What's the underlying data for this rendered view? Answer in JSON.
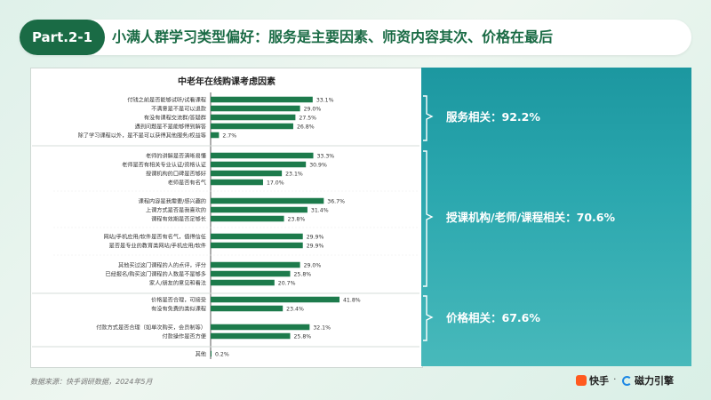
{
  "header": {
    "badge": "Part.2-1",
    "title": "小满人群学习类型偏好：服务是主要因素、师资内容其次、价格在最后"
  },
  "footnote": "数据来源：快手调研数据，2024年5月",
  "logos": {
    "kuaishou": "快手",
    "cili": "磁力引擎",
    "separator": "·"
  },
  "colors": {
    "bar": "#1d7b4c",
    "brand": "#1a6b45",
    "panel": "#1c97a0"
  },
  "chart_data": {
    "type": "bar",
    "orientation": "horizontal",
    "title": "中老年在线购课考虑因素",
    "xlim": [
      0,
      45
    ],
    "groups": [
      {
        "summary": "服务相关：92.2%",
        "items": [
          {
            "label": "付钱之前是否能够试听/试看课程",
            "value": 33.1,
            "value_label": "33.1%"
          },
          {
            "label": "不满意是不是可以退款",
            "value": 29.0,
            "value_label": "29.0%"
          },
          {
            "label": "有没有课程交流群/答疑群",
            "value": 27.5,
            "value_label": "27.5%"
          },
          {
            "label": "遇到问题是不是能够得到解答",
            "value": 26.8,
            "value_label": "26.8%"
          },
          {
            "label": "除了学习课程以外，是不是可以获得其他服务/权益等",
            "value": 2.7,
            "value_label": "2.7%"
          }
        ]
      },
      {
        "summary": "授课机构/老师/课程相关：70.6%",
        "items": [
          {
            "label": "老师的讲解是否清晰易懂",
            "value": 33.3,
            "value_label": "33.3%"
          },
          {
            "label": "老师是否有相关专业认证/资格认证",
            "value": 30.9,
            "value_label": "30.9%"
          },
          {
            "label": "授课机构的口碑是否够好",
            "value": 23.1,
            "value_label": "23.1%"
          },
          {
            "label": "老师是否有名气",
            "value": 17.0,
            "value_label": "17.0%"
          },
          {
            "label": "课程内容是我需要/感兴趣的",
            "value": 36.7,
            "value_label": "36.7%"
          },
          {
            "label": "上课方式是否是我喜欢的",
            "value": 31.4,
            "value_label": "31.4%"
          },
          {
            "label": "课程有效期是否足够长",
            "value": 23.8,
            "value_label": "23.8%"
          },
          {
            "label": "网站/手机应用/软件是否有名气，值得信任",
            "value": 29.9,
            "value_label": "29.9%"
          },
          {
            "label": "是否是专业的教育类网站/手机应用/软件",
            "value": 29.9,
            "value_label": "29.9%"
          },
          {
            "label": "其他买过这门课程的人的点评，评分",
            "value": 29.0,
            "value_label": "29.0%"
          },
          {
            "label": "已经报名/购买这门课程的人数是不是够多",
            "value": 25.8,
            "value_label": "25.8%"
          },
          {
            "label": "家人/朋友的意见和看法",
            "value": 20.7,
            "value_label": "20.7%"
          }
        ]
      },
      {
        "summary": "价格相关：67.6%",
        "items": [
          {
            "label": "价格是否合理，可接受",
            "value": 41.8,
            "value_label": "41.8%"
          },
          {
            "label": "有没有免费的类似课程",
            "value": 23.4,
            "value_label": "23.4%"
          },
          {
            "label": "付款方式是否合理（如单次购买，会员制等）",
            "value": 32.1,
            "value_label": "32.1%"
          },
          {
            "label": "付款操作是否方便",
            "value": 25.8,
            "value_label": "25.8%"
          }
        ]
      },
      {
        "summary": "",
        "items": [
          {
            "label": "其他",
            "value": 0.2,
            "value_label": "0.2%"
          }
        ]
      }
    ]
  }
}
